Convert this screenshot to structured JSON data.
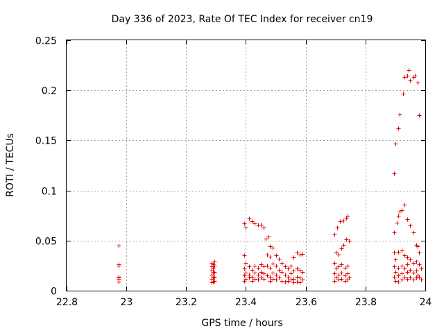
{
  "chart_data": {
    "type": "scatter",
    "title": "Day 336 of 2023, Rate Of TEC Index for receiver cn19",
    "xlabel": "GPS time / hours",
    "ylabel": "ROTI / TECUs",
    "xlim": [
      22.8,
      24
    ],
    "ylim": [
      0,
      0.25
    ],
    "xticks": [
      22.8,
      23,
      23.2,
      23.4,
      23.6,
      23.8,
      24
    ],
    "xtick_labels": [
      "22.8",
      "23",
      "23.2",
      "23.4",
      "23.6",
      "23.8",
      "24"
    ],
    "yticks": [
      0,
      0.05,
      0.1,
      0.15,
      0.2,
      0.25
    ],
    "ytick_labels": [
      "0",
      "0.05",
      "0.1",
      "0.15",
      "0.2",
      "0.25"
    ],
    "grid": true,
    "marker": "+",
    "color": "#e00000",
    "series": [
      {
        "name": "ROTI",
        "points": [
          [
            22.975,
            0.045
          ],
          [
            22.975,
            0.026
          ],
          [
            22.975,
            0.025
          ],
          [
            22.975,
            0.014
          ],
          [
            22.975,
            0.013
          ],
          [
            22.975,
            0.012
          ],
          [
            22.975,
            0.009
          ],
          [
            23.285,
            0.028
          ],
          [
            23.285,
            0.024
          ],
          [
            23.285,
            0.02
          ],
          [
            23.285,
            0.016
          ],
          [
            23.285,
            0.012
          ],
          [
            23.285,
            0.008
          ],
          [
            23.29,
            0.026
          ],
          [
            23.29,
            0.022
          ],
          [
            23.29,
            0.018
          ],
          [
            23.29,
            0.013
          ],
          [
            23.29,
            0.009
          ],
          [
            23.295,
            0.029
          ],
          [
            23.295,
            0.025
          ],
          [
            23.295,
            0.019
          ],
          [
            23.295,
            0.014
          ],
          [
            23.295,
            0.01
          ],
          [
            23.395,
            0.067
          ],
          [
            23.4,
            0.063
          ],
          [
            23.41,
            0.072
          ],
          [
            23.42,
            0.069
          ],
          [
            23.43,
            0.067
          ],
          [
            23.44,
            0.066
          ],
          [
            23.45,
            0.066
          ],
          [
            23.46,
            0.063
          ],
          [
            23.465,
            0.052
          ],
          [
            23.475,
            0.054
          ],
          [
            23.48,
            0.044
          ],
          [
            23.49,
            0.043
          ],
          [
            23.395,
            0.035
          ],
          [
            23.4,
            0.028
          ],
          [
            23.395,
            0.022
          ],
          [
            23.4,
            0.018
          ],
          [
            23.395,
            0.015
          ],
          [
            23.4,
            0.012
          ],
          [
            23.395,
            0.01
          ],
          [
            23.41,
            0.024
          ],
          [
            23.41,
            0.016
          ],
          [
            23.41,
            0.013
          ],
          [
            23.42,
            0.021
          ],
          [
            23.42,
            0.014
          ],
          [
            23.42,
            0.01
          ],
          [
            23.43,
            0.025
          ],
          [
            23.43,
            0.018
          ],
          [
            23.43,
            0.012
          ],
          [
            23.44,
            0.023
          ],
          [
            23.44,
            0.016
          ],
          [
            23.44,
            0.011
          ],
          [
            23.45,
            0.026
          ],
          [
            23.45,
            0.019
          ],
          [
            23.45,
            0.013
          ],
          [
            23.46,
            0.024
          ],
          [
            23.46,
            0.017
          ],
          [
            23.46,
            0.012
          ],
          [
            23.47,
            0.036
          ],
          [
            23.47,
            0.025
          ],
          [
            23.47,
            0.015
          ],
          [
            23.48,
            0.034
          ],
          [
            23.48,
            0.023
          ],
          [
            23.48,
            0.014
          ],
          [
            23.48,
            0.01
          ],
          [
            23.49,
            0.027
          ],
          [
            23.49,
            0.018
          ],
          [
            23.49,
            0.012
          ],
          [
            23.5,
            0.035
          ],
          [
            23.5,
            0.025
          ],
          [
            23.5,
            0.016
          ],
          [
            23.5,
            0.011
          ],
          [
            23.51,
            0.032
          ],
          [
            23.51,
            0.021
          ],
          [
            23.51,
            0.013
          ],
          [
            23.52,
            0.028
          ],
          [
            23.52,
            0.019
          ],
          [
            23.52,
            0.01
          ],
          [
            23.53,
            0.024
          ],
          [
            23.53,
            0.016
          ],
          [
            23.53,
            0.009
          ],
          [
            23.54,
            0.022
          ],
          [
            23.54,
            0.014
          ],
          [
            23.54,
            0.01
          ],
          [
            23.55,
            0.025
          ],
          [
            23.55,
            0.017
          ],
          [
            23.55,
            0.011
          ],
          [
            23.56,
            0.033
          ],
          [
            23.56,
            0.02
          ],
          [
            23.56,
            0.012
          ],
          [
            23.56,
            0.008
          ],
          [
            23.57,
            0.038
          ],
          [
            23.57,
            0.022
          ],
          [
            23.57,
            0.014
          ],
          [
            23.57,
            0.009
          ],
          [
            23.58,
            0.036
          ],
          [
            23.58,
            0.021
          ],
          [
            23.58,
            0.013
          ],
          [
            23.58,
            0.008
          ],
          [
            23.59,
            0.037
          ],
          [
            23.59,
            0.019
          ],
          [
            23.59,
            0.011
          ],
          [
            23.695,
            0.056
          ],
          [
            23.705,
            0.063
          ],
          [
            23.715,
            0.069
          ],
          [
            23.725,
            0.07
          ],
          [
            23.735,
            0.073
          ],
          [
            23.74,
            0.075
          ],
          [
            23.735,
            0.051
          ],
          [
            23.745,
            0.05
          ],
          [
            23.7,
            0.038
          ],
          [
            23.71,
            0.036
          ],
          [
            23.72,
            0.042
          ],
          [
            23.725,
            0.046
          ],
          [
            23.695,
            0.028
          ],
          [
            23.7,
            0.022
          ],
          [
            23.695,
            0.017
          ],
          [
            23.7,
            0.013
          ],
          [
            23.695,
            0.01
          ],
          [
            23.71,
            0.024
          ],
          [
            23.71,
            0.016
          ],
          [
            23.71,
            0.011
          ],
          [
            23.72,
            0.026
          ],
          [
            23.72,
            0.018
          ],
          [
            23.72,
            0.012
          ],
          [
            23.73,
            0.023
          ],
          [
            23.73,
            0.015
          ],
          [
            23.73,
            0.01
          ],
          [
            23.74,
            0.025
          ],
          [
            23.74,
            0.017
          ],
          [
            23.74,
            0.011
          ],
          [
            23.745,
            0.013
          ],
          [
            23.895,
            0.117
          ],
          [
            23.9,
            0.147
          ],
          [
            23.91,
            0.162
          ],
          [
            23.915,
            0.176
          ],
          [
            23.925,
            0.197
          ],
          [
            23.93,
            0.213
          ],
          [
            23.94,
            0.215
          ],
          [
            23.945,
            0.22
          ],
          [
            23.95,
            0.21
          ],
          [
            23.96,
            0.213
          ],
          [
            23.965,
            0.215
          ],
          [
            23.975,
            0.208
          ],
          [
            23.98,
            0.175
          ],
          [
            23.895,
            0.058
          ],
          [
            23.905,
            0.068
          ],
          [
            23.91,
            0.075
          ],
          [
            23.915,
            0.079
          ],
          [
            23.92,
            0.08
          ],
          [
            23.93,
            0.086
          ],
          [
            23.94,
            0.071
          ],
          [
            23.95,
            0.065
          ],
          [
            23.96,
            0.058
          ],
          [
            23.97,
            0.046
          ],
          [
            23.975,
            0.044
          ],
          [
            23.98,
            0.038
          ],
          [
            23.895,
            0.038
          ],
          [
            23.9,
            0.031
          ],
          [
            23.895,
            0.024
          ],
          [
            23.9,
            0.019
          ],
          [
            23.895,
            0.014
          ],
          [
            23.9,
            0.01
          ],
          [
            23.91,
            0.039
          ],
          [
            23.91,
            0.023
          ],
          [
            23.91,
            0.015
          ],
          [
            23.91,
            0.009
          ],
          [
            23.92,
            0.04
          ],
          [
            23.92,
            0.025
          ],
          [
            23.92,
            0.017
          ],
          [
            23.92,
            0.011
          ],
          [
            23.93,
            0.035
          ],
          [
            23.93,
            0.022
          ],
          [
            23.93,
            0.014
          ],
          [
            23.94,
            0.033
          ],
          [
            23.94,
            0.026
          ],
          [
            23.94,
            0.019
          ],
          [
            23.94,
            0.012
          ],
          [
            23.95,
            0.031
          ],
          [
            23.95,
            0.021
          ],
          [
            23.95,
            0.013
          ],
          [
            23.96,
            0.028
          ],
          [
            23.96,
            0.018
          ],
          [
            23.96,
            0.011
          ],
          [
            23.97,
            0.029
          ],
          [
            23.97,
            0.02
          ],
          [
            23.97,
            0.013
          ],
          [
            23.975,
            0.016
          ],
          [
            23.98,
            0.026
          ],
          [
            23.98,
            0.014
          ],
          [
            23.985,
            0.022
          ],
          [
            23.985,
            0.011
          ]
        ]
      }
    ]
  }
}
